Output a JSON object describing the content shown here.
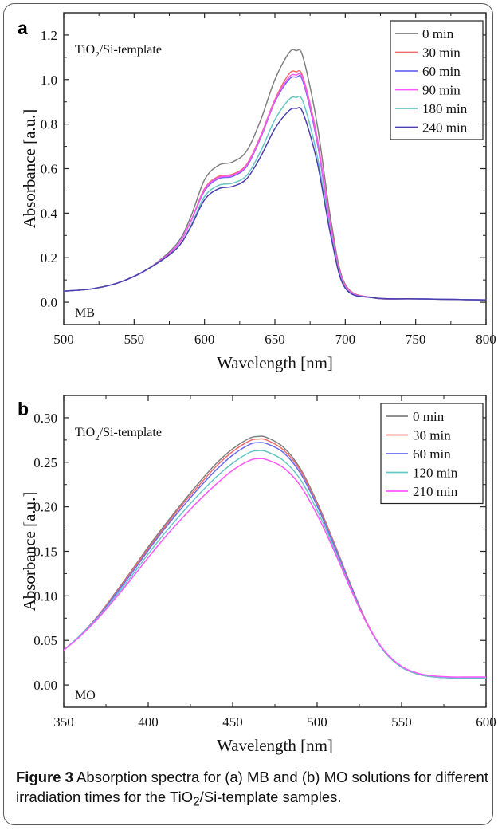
{
  "charts": [
    {
      "panel_label": "a",
      "sample_label_main": "TiO",
      "sample_label_sub": "2",
      "sample_label_rest": "/Si-template",
      "dye_label": "MB",
      "xlabel": "Wavelength [nm]",
      "ylabel": "Absorbance [a.u.]",
      "colors": {
        "series": [
          "#808080",
          "#f26b6b",
          "#6b6bf2",
          "#ff55ff",
          "#66c6c6",
          "#4b3fb0"
        ]
      }
    },
    {
      "panel_label": "b",
      "sample_label_main": "TiO",
      "sample_label_sub": "2",
      "sample_label_rest": "/Si-template",
      "dye_label": "MO",
      "xlabel": "Wavelength [nm]",
      "ylabel": "Absorbance [a.u.]",
      "colors": {
        "series": [
          "#808080",
          "#f26b6b",
          "#6b6bf2",
          "#66c6c6",
          "#ff55ff"
        ]
      }
    }
  ],
  "chart_data": [
    {
      "type": "line",
      "xlabel": "Wavelength [nm]",
      "ylabel": "Absorbance [a.u.]",
      "xlim": [
        500,
        800
      ],
      "ylim": [
        -0.1,
        1.3
      ],
      "xticks": [
        "500",
        "550",
        "600",
        "650",
        "700",
        "750",
        "800"
      ],
      "yticks": [
        "0.0",
        "0.2",
        "0.4",
        "0.6",
        "0.8",
        "1.0",
        "1.2"
      ],
      "legend_position": "top-right",
      "grid": false,
      "x": [
        500,
        520,
        540,
        560,
        580,
        590,
        600,
        610,
        620,
        630,
        640,
        650,
        660,
        665,
        670,
        680,
        690,
        700,
        720,
        750,
        800
      ],
      "series": [
        {
          "name": "0 min",
          "values": [
            0.05,
            0.06,
            0.09,
            0.15,
            0.26,
            0.38,
            0.55,
            0.615,
            0.63,
            0.68,
            0.82,
            1.0,
            1.12,
            1.13,
            1.1,
            0.8,
            0.36,
            0.08,
            0.02,
            0.015,
            0.01
          ]
        },
        {
          "name": "30 min",
          "values": [
            0.05,
            0.06,
            0.09,
            0.15,
            0.25,
            0.36,
            0.51,
            0.565,
            0.575,
            0.62,
            0.75,
            0.91,
            1.025,
            1.035,
            1.01,
            0.74,
            0.33,
            0.075,
            0.02,
            0.015,
            0.01
          ]
        },
        {
          "name": "60 min",
          "values": [
            0.05,
            0.06,
            0.09,
            0.15,
            0.25,
            0.36,
            0.5,
            0.555,
            0.565,
            0.61,
            0.74,
            0.9,
            1.0,
            1.01,
            0.99,
            0.72,
            0.32,
            0.07,
            0.02,
            0.015,
            0.01
          ]
        },
        {
          "name": "90 min",
          "values": [
            0.05,
            0.06,
            0.09,
            0.15,
            0.25,
            0.36,
            0.505,
            0.56,
            0.57,
            0.615,
            0.745,
            0.905,
            1.01,
            1.02,
            1.0,
            0.73,
            0.325,
            0.072,
            0.02,
            0.015,
            0.01
          ]
        },
        {
          "name": "180 min",
          "values": [
            0.05,
            0.06,
            0.09,
            0.15,
            0.24,
            0.34,
            0.475,
            0.525,
            0.535,
            0.57,
            0.68,
            0.82,
            0.91,
            0.92,
            0.9,
            0.66,
            0.3,
            0.065,
            0.02,
            0.015,
            0.01
          ]
        },
        {
          "name": "240 min",
          "values": [
            0.05,
            0.06,
            0.09,
            0.15,
            0.24,
            0.335,
            0.46,
            0.51,
            0.52,
            0.555,
            0.655,
            0.78,
            0.86,
            0.87,
            0.85,
            0.63,
            0.29,
            0.063,
            0.02,
            0.015,
            0.01
          ]
        }
      ]
    },
    {
      "type": "line",
      "xlabel": "Wavelength [nm]",
      "ylabel": "Absorbance [a.u.]",
      "xlim": [
        350,
        600
      ],
      "ylim": [
        -0.025,
        0.325
      ],
      "xticks": [
        "350",
        "400",
        "450",
        "500",
        "550",
        "600"
      ],
      "yticks": [
        "0.00",
        "0.05",
        "0.10",
        "0.15",
        "0.20",
        "0.25",
        "0.30"
      ],
      "legend_position": "top-right",
      "grid": false,
      "x": [
        350,
        360,
        370,
        380,
        390,
        400,
        410,
        420,
        430,
        440,
        450,
        460,
        465,
        470,
        480,
        490,
        500,
        510,
        520,
        530,
        540,
        550,
        560,
        570,
        580,
        590,
        600
      ],
      "series": [
        {
          "name": "0 min",
          "values": [
            0.039,
            0.056,
            0.077,
            0.102,
            0.128,
            0.155,
            0.18,
            0.204,
            0.227,
            0.248,
            0.265,
            0.277,
            0.279,
            0.278,
            0.267,
            0.243,
            0.205,
            0.16,
            0.112,
            0.068,
            0.037,
            0.02,
            0.012,
            0.009,
            0.008,
            0.008,
            0.008
          ]
        },
        {
          "name": "30 min",
          "values": [
            0.039,
            0.056,
            0.077,
            0.101,
            0.127,
            0.153,
            0.178,
            0.202,
            0.224,
            0.245,
            0.262,
            0.274,
            0.276,
            0.275,
            0.264,
            0.241,
            0.203,
            0.159,
            0.111,
            0.068,
            0.037,
            0.02,
            0.012,
            0.009,
            0.008,
            0.008,
            0.008
          ]
        },
        {
          "name": "60 min",
          "values": [
            0.039,
            0.056,
            0.076,
            0.1,
            0.125,
            0.151,
            0.176,
            0.199,
            0.221,
            0.241,
            0.258,
            0.27,
            0.272,
            0.271,
            0.261,
            0.238,
            0.201,
            0.157,
            0.11,
            0.067,
            0.037,
            0.02,
            0.012,
            0.009,
            0.008,
            0.008,
            0.008
          ]
        },
        {
          "name": "120 min",
          "values": [
            0.039,
            0.056,
            0.075,
            0.098,
            0.122,
            0.147,
            0.171,
            0.193,
            0.214,
            0.233,
            0.249,
            0.261,
            0.263,
            0.262,
            0.252,
            0.231,
            0.196,
            0.154,
            0.108,
            0.067,
            0.037,
            0.02,
            0.012,
            0.009,
            0.008,
            0.008,
            0.008
          ]
        },
        {
          "name": "210 min",
          "values": [
            0.039,
            0.055,
            0.074,
            0.096,
            0.119,
            0.143,
            0.166,
            0.187,
            0.207,
            0.225,
            0.241,
            0.252,
            0.254,
            0.253,
            0.244,
            0.224,
            0.191,
            0.151,
            0.107,
            0.067,
            0.038,
            0.021,
            0.013,
            0.01,
            0.009,
            0.009,
            0.009
          ]
        }
      ]
    }
  ],
  "caption": {
    "figure_label": "Figure 3",
    "text_part1": " Absorption spectra for (a) MB and (b) MO solutions for different irradiation times for the TiO",
    "text_sub": "2",
    "text_part2": "/Si-template samples."
  }
}
